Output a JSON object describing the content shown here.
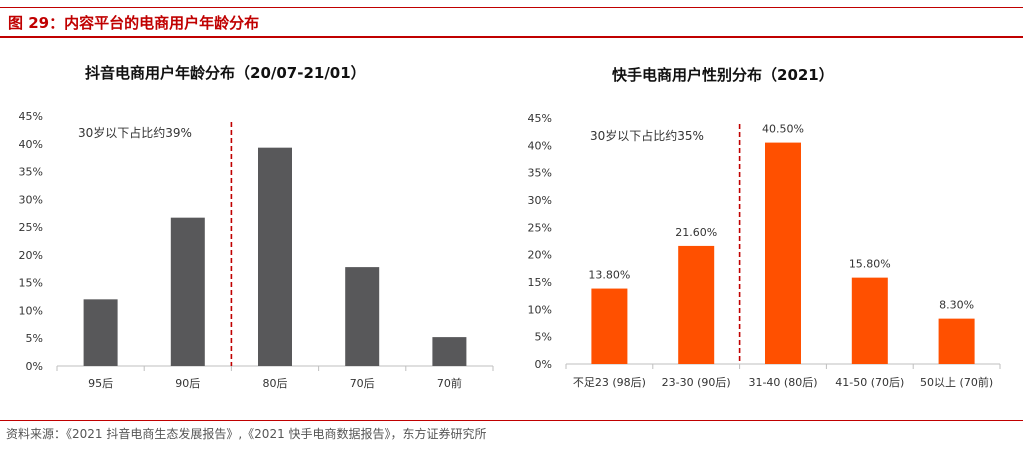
{
  "figure": {
    "title": "图 29：内容平台的电商用户年龄分布",
    "source": "资料来源：《2021 抖音电商生态发展报告》,《2021 快手电商数据报告》，东方证券研究所"
  },
  "chart_data": [
    {
      "type": "bar",
      "title": "抖音电商用户年龄分布（20/07-21/01）",
      "categories": [
        "95后",
        "90后",
        "80后",
        "70后",
        "70前"
      ],
      "values": [
        0.12,
        0.267,
        0.393,
        0.178,
        0.052
      ],
      "ylim": [
        0,
        0.45
      ],
      "yticks": [
        "0%",
        "5%",
        "10%",
        "15%",
        "20%",
        "25%",
        "30%",
        "35%",
        "40%",
        "45%"
      ],
      "annotation": "30岁以下占比约39%",
      "divider_after_index": 1,
      "bar_color": "#58585a",
      "divider_color": "#c00000",
      "xlabel": "",
      "ylabel": ""
    },
    {
      "type": "bar",
      "title": "快手电商用户性别分布（2021）",
      "categories": [
        "不足23 (98后)",
        "23-30 (90后)",
        "31-40 (80后)",
        "41-50 (70后)",
        "50以上 (70前)"
      ],
      "values": [
        0.138,
        0.216,
        0.405,
        0.158,
        0.083
      ],
      "value_labels": [
        "13.80%",
        "21.60%",
        "40.50%",
        "15.80%",
        "8.30%"
      ],
      "ylim": [
        0,
        0.45
      ],
      "yticks": [
        "0%",
        "5%",
        "10%",
        "15%",
        "20%",
        "25%",
        "30%",
        "35%",
        "40%",
        "45%"
      ],
      "annotation": "30岁以下占比约35%",
      "divider_after_index": 1,
      "bar_color": "#ff5000",
      "divider_color": "#c00000",
      "xlabel": "",
      "ylabel": ""
    }
  ]
}
